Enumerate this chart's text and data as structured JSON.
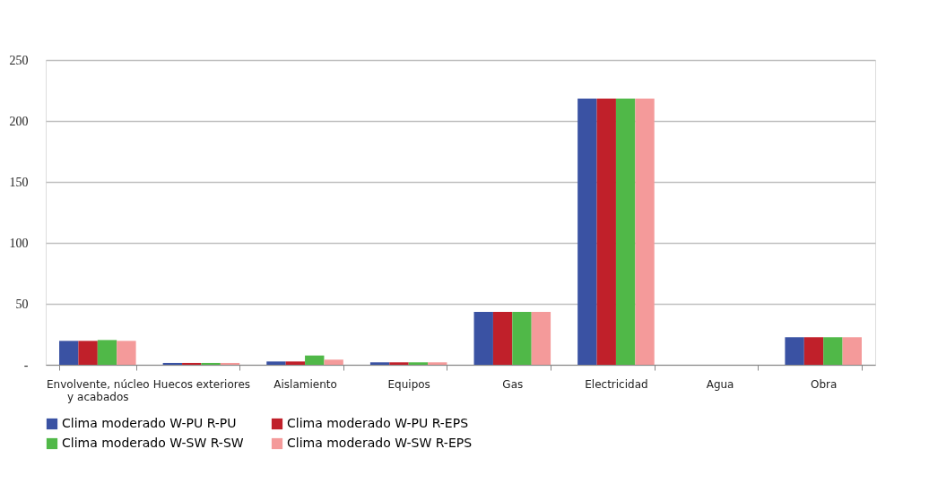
{
  "chart_data": {
    "type": "bar",
    "categories": [
      "Envolvente, núcleo y acabados",
      "Huecos exteriores",
      "Aislamiento",
      "Equipos",
      "Gas",
      "Electricidad",
      "Agua",
      "Obra"
    ],
    "series": [
      {
        "name": "Clima moderado W-PU R-PU",
        "color": "#3a52a3",
        "values": [
          19.6,
          1.5,
          2.7,
          2,
          43.4,
          218.4,
          0,
          22.6
        ]
      },
      {
        "name": "Clima moderado W-PU R-EPS",
        "color": "#c0202a",
        "values": [
          19.6,
          1.5,
          2.7,
          2,
          43.4,
          218.4,
          0,
          22.6
        ]
      },
      {
        "name": "Clima moderado W-SW R-SW",
        "color": "#50b848",
        "values": [
          20.3,
          1.5,
          7.6,
          2,
          43.4,
          218.4,
          0,
          22.6
        ]
      },
      {
        "name": "Clima moderado W-SW R-EPS",
        "color": "#f49a9a",
        "values": [
          19.6,
          1.5,
          4.2,
          2,
          43.4,
          218.4,
          0,
          22.6
        ]
      }
    ],
    "ylim": [
      0,
      250
    ],
    "yticks": [
      {
        "value": 0,
        "label": "-"
      },
      50,
      100,
      150,
      200,
      250
    ],
    "grid": "y",
    "legend": "bottom"
  }
}
